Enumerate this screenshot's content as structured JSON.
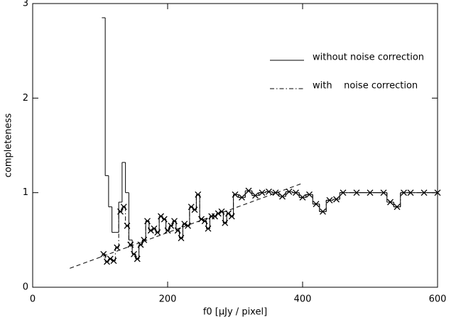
{
  "chart_data": {
    "type": "step",
    "xlabel": "f0 [μJy / pixel]",
    "ylabel": "completeness",
    "xlim": [
      0,
      600
    ],
    "xticks": [
      0,
      200,
      400,
      600
    ],
    "ylim": [
      0,
      3
    ],
    "yticks": [
      0,
      1,
      2,
      3
    ],
    "series": [
      {
        "name": "without noise correction",
        "color": "#000000",
        "style": "solid",
        "x": [
          105,
          110,
          115,
          120,
          125,
          130,
          135,
          140,
          145,
          150,
          155,
          160,
          165,
          170,
          175,
          180,
          185,
          190,
          195,
          200,
          205,
          210,
          215,
          220,
          225,
          230,
          235,
          240,
          245,
          250,
          255,
          260,
          265,
          270,
          275,
          280,
          285,
          290,
          295,
          300,
          310,
          320,
          330,
          340,
          350,
          360,
          370,
          380,
          390,
          400,
          410,
          420,
          430,
          440,
          450,
          460,
          480,
          500,
          520,
          530,
          540,
          550,
          560,
          580,
          600
        ],
        "values": [
          2.85,
          1.18,
          0.85,
          0.58,
          0.58,
          0.9,
          1.32,
          1.0,
          0.5,
          0.35,
          0.3,
          0.45,
          0.5,
          0.7,
          0.6,
          0.62,
          0.58,
          0.75,
          0.72,
          0.6,
          0.65,
          0.7,
          0.6,
          0.52,
          0.67,
          0.65,
          0.85,
          0.82,
          0.98,
          0.72,
          0.7,
          0.62,
          0.75,
          0.75,
          0.78,
          0.8,
          0.68,
          0.78,
          0.75,
          0.98,
          0.95,
          1.02,
          0.97,
          1.0,
          1.01,
          1.0,
          0.96,
          1.01,
          1.0,
          0.95,
          0.98,
          0.88,
          0.8,
          0.92,
          0.93,
          1.0,
          1.0,
          1.0,
          1.0,
          0.9,
          0.85,
          1.0,
          1.0,
          1.0,
          1.0
        ]
      },
      {
        "name": "with    noise correction",
        "color": "#000000",
        "style": "dashdot",
        "markers": true,
        "x": [
          105,
          110,
          115,
          120,
          125,
          130,
          135,
          140,
          145,
          150,
          155,
          160,
          165,
          170,
          175,
          180,
          185,
          190,
          195,
          200,
          205,
          210,
          215,
          220,
          225,
          230,
          235,
          240,
          245,
          250,
          255,
          260,
          265,
          270,
          275,
          280,
          285,
          290,
          295,
          300,
          310,
          320,
          330,
          340,
          350,
          360,
          370,
          380,
          390,
          400,
          410,
          420,
          430,
          440,
          450,
          460,
          480,
          500,
          520,
          530,
          540,
          550,
          560,
          580,
          600
        ],
        "values": [
          0.35,
          0.27,
          0.3,
          0.28,
          0.42,
          0.8,
          0.85,
          0.65,
          0.45,
          0.35,
          0.3,
          0.45,
          0.5,
          0.7,
          0.6,
          0.62,
          0.58,
          0.75,
          0.72,
          0.6,
          0.65,
          0.7,
          0.6,
          0.52,
          0.67,
          0.65,
          0.85,
          0.82,
          0.98,
          0.72,
          0.7,
          0.62,
          0.75,
          0.75,
          0.78,
          0.8,
          0.68,
          0.78,
          0.75,
          0.98,
          0.95,
          1.02,
          0.97,
          1.0,
          1.01,
          1.0,
          0.96,
          1.01,
          1.0,
          0.95,
          0.98,
          0.88,
          0.8,
          0.92,
          0.93,
          1.0,
          1.0,
          1.0,
          1.0,
          0.9,
          0.85,
          1.0,
          1.0,
          1.0,
          1.0
        ]
      },
      {
        "color": "#000000",
        "style": "dashed",
        "x": [
          55,
          400
        ],
        "values": [
          0.2,
          1.1
        ]
      }
    ]
  }
}
